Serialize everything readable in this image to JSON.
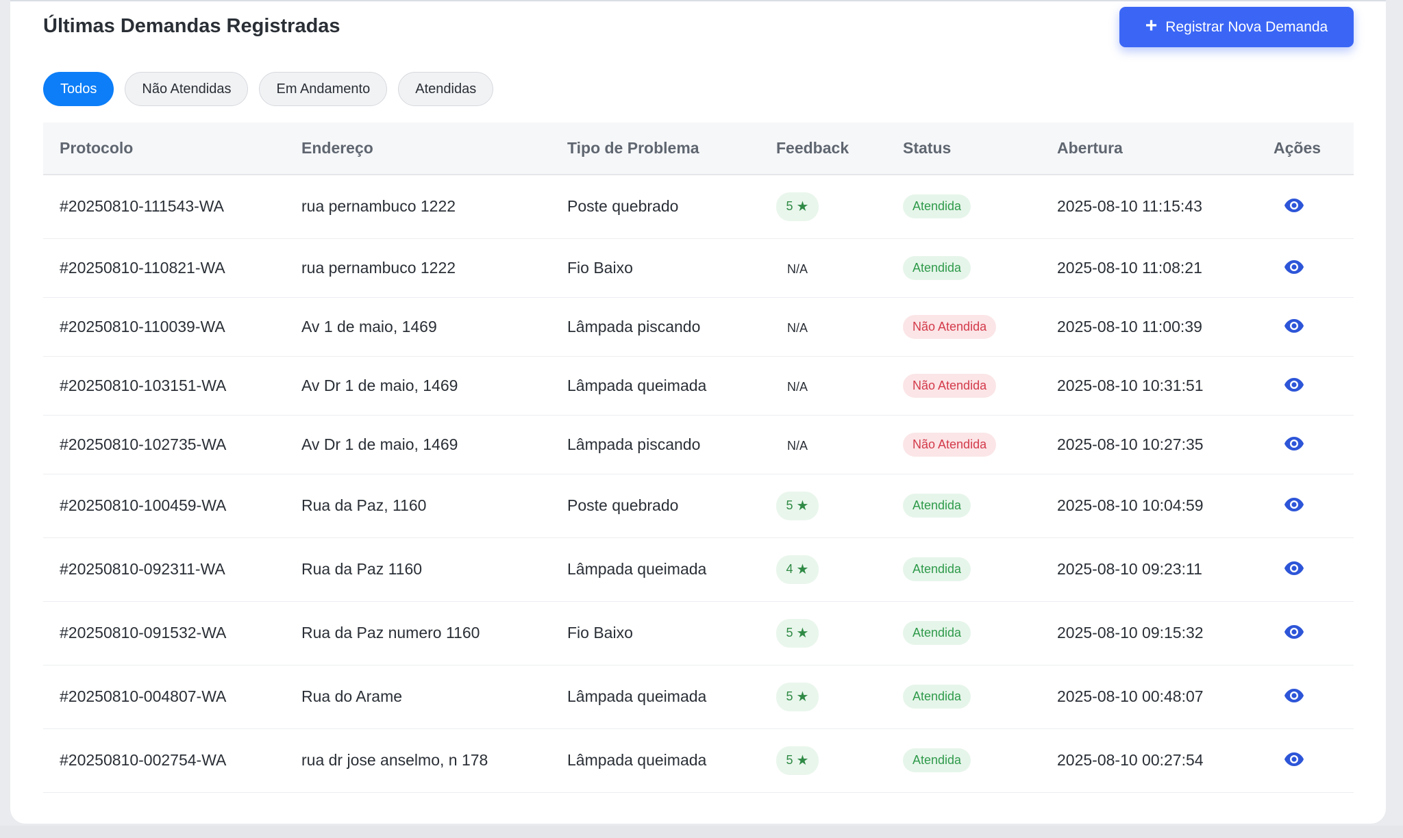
{
  "header": {
    "title": "Últimas Demandas Registradas",
    "new_button_label": "Registrar Nova Demanda",
    "new_button_icon": "plus-icon"
  },
  "filters": [
    {
      "label": "Todos",
      "active": true
    },
    {
      "label": "Não Atendidas",
      "active": false
    },
    {
      "label": "Em Andamento",
      "active": false
    },
    {
      "label": "Atendidas",
      "active": false
    }
  ],
  "table": {
    "columns": [
      "Protocolo",
      "Endereço",
      "Tipo de Problema",
      "Feedback",
      "Status",
      "Abertura",
      "Ações"
    ],
    "rows": [
      {
        "protocolo": "#20250810-111543-WA",
        "endereco": "rua pernambuco 1222",
        "tipo": "Poste quebrado",
        "feedback": "5",
        "status": "Atendida",
        "abertura": "2025-08-10 11:15:43"
      },
      {
        "protocolo": "#20250810-110821-WA",
        "endereco": "rua pernambuco 1222",
        "tipo": "Fio Baixo",
        "feedback": "N/A",
        "status": "Atendida",
        "abertura": "2025-08-10 11:08:21"
      },
      {
        "protocolo": "#20250810-110039-WA",
        "endereco": "Av 1 de maio, 1469",
        "tipo": "Lâmpada piscando",
        "feedback": "N/A",
        "status": "Não Atendida",
        "abertura": "2025-08-10 11:00:39"
      },
      {
        "protocolo": "#20250810-103151-WA",
        "endereco": "Av Dr 1 de maio, 1469",
        "tipo": "Lâmpada queimada",
        "feedback": "N/A",
        "status": "Não Atendida",
        "abertura": "2025-08-10 10:31:51"
      },
      {
        "protocolo": "#20250810-102735-WA",
        "endereco": "Av Dr 1 de maio, 1469",
        "tipo": "Lâmpada piscando",
        "feedback": "N/A",
        "status": "Não Atendida",
        "abertura": "2025-08-10 10:27:35"
      },
      {
        "protocolo": "#20250810-100459-WA",
        "endereco": "Rua da Paz, 1160",
        "tipo": "Poste quebrado",
        "feedback": "5",
        "status": "Atendida",
        "abertura": "2025-08-10 10:04:59"
      },
      {
        "protocolo": "#20250810-092311-WA",
        "endereco": "Rua da Paz 1160",
        "tipo": "Lâmpada queimada",
        "feedback": "4",
        "status": "Atendida",
        "abertura": "2025-08-10 09:23:11"
      },
      {
        "protocolo": "#20250810-091532-WA",
        "endereco": "Rua da Paz numero 1160",
        "tipo": "Fio Baixo",
        "feedback": "5",
        "status": "Atendida",
        "abertura": "2025-08-10 09:15:32"
      },
      {
        "protocolo": "#20250810-004807-WA",
        "endereco": "Rua do Arame",
        "tipo": "Lâmpada queimada",
        "feedback": "5",
        "status": "Atendida",
        "abertura": "2025-08-10 00:48:07"
      },
      {
        "protocolo": "#20250810-002754-WA",
        "endereco": "rua dr jose anselmo, n 178",
        "tipo": "Lâmpada queimada",
        "feedback": "5",
        "status": "Atendida",
        "abertura": "2025-08-10 00:27:54"
      }
    ]
  },
  "icons": {
    "feedback": "star-icon",
    "action": "eye-icon"
  },
  "colors": {
    "primary": "#3b66f5",
    "filter_active": "#0d7ef7",
    "status_ok_text": "#2e9a4a",
    "status_ok_bg": "#e6f5ea",
    "status_no_text": "#d33a4a",
    "status_no_bg": "#fbe5e7",
    "eye": "#2d55d8"
  }
}
